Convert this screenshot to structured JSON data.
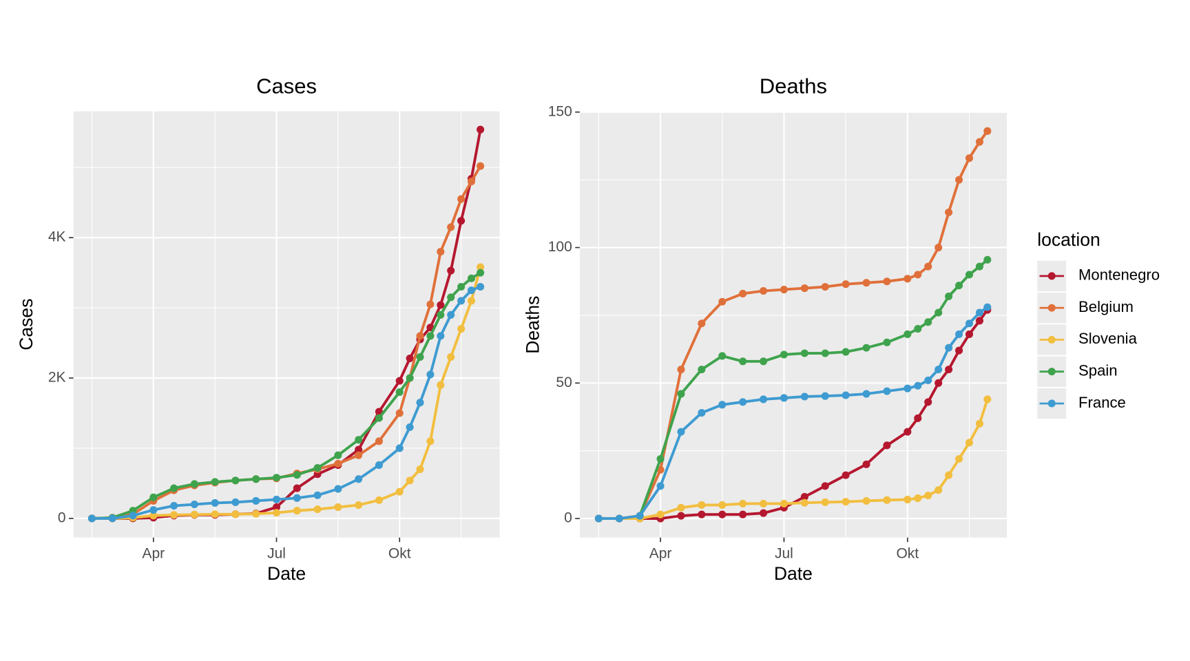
{
  "chart_data": [
    {
      "type": "line",
      "title": "Cases",
      "x_label": "Date",
      "y_label": "Cases",
      "x": [
        2.5,
        3,
        3.5,
        4,
        4.5,
        5,
        5.5,
        6,
        6.5,
        7,
        7.5,
        8,
        8.5,
        9,
        9.5,
        10,
        10.25,
        10.5,
        10.75,
        11,
        11.25,
        11.5,
        11.75,
        11.97
      ],
      "xlim": [
        2.05,
        12.44
      ],
      "xticks": [
        {
          "value": 4,
          "label": "Apr"
        },
        {
          "value": 7,
          "label": "Jul"
        },
        {
          "value": 10,
          "label": "Okt"
        }
      ],
      "ylim": [
        -272,
        5800
      ],
      "yticks": [
        0,
        {
          "value": 2000,
          "label": "2K"
        },
        {
          "value": 4000,
          "label": "4K"
        }
      ],
      "grid": true,
      "series": [
        {
          "name": "Montenegro",
          "color": "#b5172f",
          "values": [
            0,
            0,
            0,
            10,
            40,
            50,
            50,
            60,
            70,
            160,
            430,
            630,
            760,
            980,
            1520,
            1960,
            2280,
            2550,
            2720,
            3040,
            3530,
            4240,
            4840,
            5540
          ]
        },
        {
          "name": "Belgium",
          "color": "#e0703a",
          "values": [
            0,
            10,
            60,
            250,
            400,
            470,
            510,
            540,
            560,
            570,
            640,
            700,
            780,
            900,
            1100,
            1500,
            2000,
            2600,
            3050,
            3800,
            4150,
            4550,
            4800,
            5020
          ]
        },
        {
          "name": "Slovenia",
          "color": "#f2be3f",
          "values": [
            0,
            0,
            10,
            40,
            50,
            55,
            60,
            60,
            65,
            80,
            110,
            130,
            160,
            190,
            260,
            380,
            540,
            700,
            1100,
            1900,
            2300,
            2700,
            3100,
            3580
          ]
        },
        {
          "name": "Spain",
          "color": "#3fa34d",
          "values": [
            0,
            10,
            110,
            300,
            430,
            490,
            520,
            540,
            560,
            580,
            620,
            720,
            900,
            1120,
            1430,
            1800,
            2000,
            2300,
            2600,
            2900,
            3150,
            3300,
            3420,
            3500
          ]
        },
        {
          "name": "France",
          "color": "#3e9bd1",
          "values": [
            0,
            0,
            40,
            120,
            180,
            200,
            220,
            230,
            250,
            270,
            290,
            330,
            420,
            560,
            760,
            1000,
            1300,
            1650,
            2050,
            2600,
            2900,
            3100,
            3250,
            3300
          ]
        }
      ]
    },
    {
      "type": "line",
      "title": "Deaths",
      "x_label": "Date",
      "y_label": "Deaths",
      "legend_title": "location",
      "legend": "right",
      "x": [
        2.5,
        3,
        3.5,
        4,
        4.5,
        5,
        5.5,
        6,
        6.5,
        7,
        7.5,
        8,
        8.5,
        9,
        9.5,
        10,
        10.25,
        10.5,
        10.75,
        11,
        11.25,
        11.5,
        11.75,
        11.94
      ],
      "xlim": [
        2.04,
        12.41
      ],
      "xticks": [
        {
          "value": 4,
          "label": "Apr"
        },
        {
          "value": 7,
          "label": "Jul"
        },
        {
          "value": 10,
          "label": "Okt"
        }
      ],
      "ylim": [
        -7,
        150
      ],
      "yticks": [
        0,
        50,
        100,
        150
      ],
      "grid": true,
      "series": [
        {
          "name": "Montenegro",
          "color": "#b5172f",
          "values": [
            0,
            0,
            0,
            0,
            1,
            1.5,
            1.5,
            1.5,
            2,
            4,
            8,
            12,
            16,
            20,
            27,
            32,
            37,
            43,
            50,
            55,
            62,
            68,
            73,
            77
          ]
        },
        {
          "name": "Belgium",
          "color": "#e0703a",
          "values": [
            0,
            0,
            1,
            18,
            55,
            72,
            80,
            83,
            84,
            84.5,
            85,
            85.5,
            86.5,
            87,
            87.5,
            88.5,
            90,
            93,
            100,
            113,
            125,
            133,
            139,
            143
          ]
        },
        {
          "name": "Slovenia",
          "color": "#f2be3f",
          "values": [
            0,
            0,
            0,
            1.5,
            4,
            5,
            5,
            5.5,
            5.5,
            5.5,
            5.8,
            6,
            6.2,
            6.5,
            6.8,
            7,
            7.5,
            8.5,
            10.5,
            16,
            22,
            28,
            35,
            44
          ]
        },
        {
          "name": "Spain",
          "color": "#3fa34d",
          "values": [
            null,
            null,
            1,
            22,
            46,
            55,
            60,
            58,
            58,
            60.5,
            61,
            61,
            61.5,
            63,
            65,
            68,
            70,
            72.5,
            76,
            82,
            86,
            90,
            93,
            95.5
          ]
        },
        {
          "name": "France",
          "color": "#3e9bd1",
          "values": [
            0,
            0,
            1,
            12,
            32,
            39,
            42,
            43,
            44,
            44.5,
            45,
            45.2,
            45.5,
            46,
            47,
            48,
            49,
            51,
            55,
            63,
            68,
            72,
            76,
            78
          ]
        }
      ]
    }
  ]
}
